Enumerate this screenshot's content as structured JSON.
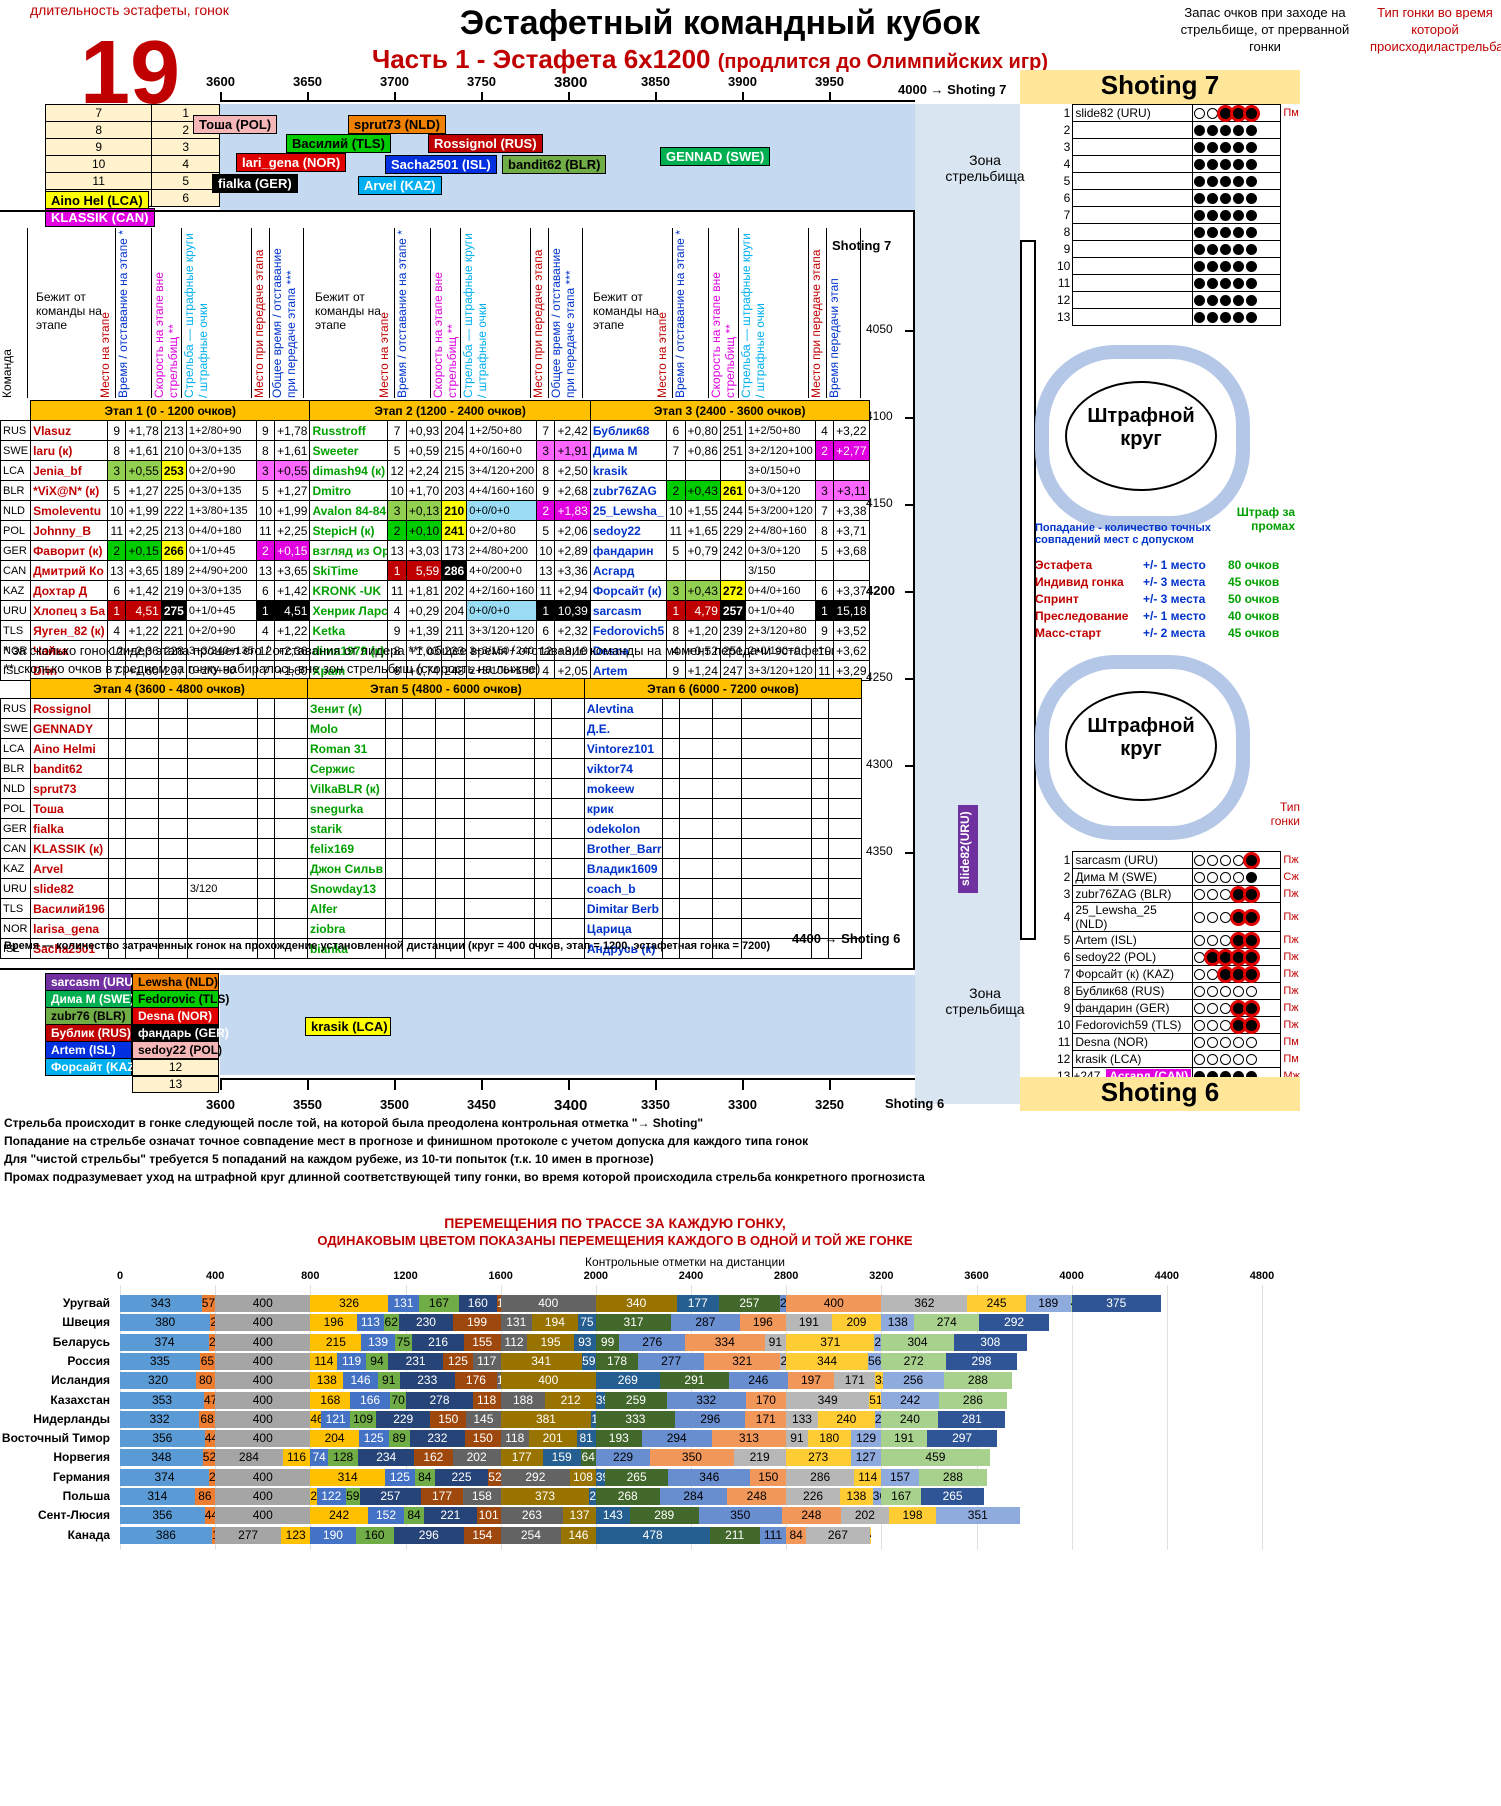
{
  "header": {
    "duration_label": "длительность эстафеты, гонок",
    "duration_value": "19",
    "title": "Эстафетный командный кубок",
    "subtitle": "Часть 1 - Эстафета 6х1200",
    "subtitle_note": "(продлится до Олимпийских игр)",
    "reserve_label": "Запас очков при заходе на стрельбище, от прерванной гонки",
    "race_type_label": "Тип гонки во время которой происходиластрельба"
  },
  "ruler_top": {
    "ticks": [
      "3600",
      "3650",
      "3700",
      "3750",
      "3800",
      "3850",
      "3900",
      "3950"
    ],
    "end": "4000 → Shoting 7"
  },
  "ruler_bottom": {
    "ticks": [
      "3600",
      "3550",
      "3500",
      "3450",
      "3400",
      "3350",
      "3300",
      "3250"
    ],
    "end": "Shoting 6"
  },
  "side_ticks": [
    "4050",
    "4100",
    "4150",
    "4200",
    "4250",
    "4300",
    "4350"
  ],
  "shoting7_label_left": "Shoting 7",
  "shoting6_label_left": "4400 → Shoting 6",
  "queue_top": [
    [
      "7",
      "1"
    ],
    [
      "8",
      "2"
    ],
    [
      "9",
      "3"
    ],
    [
      "10",
      "4"
    ],
    [
      "11",
      "5"
    ],
    [
      "",
      "6"
    ]
  ],
  "queue_top_tags": [
    {
      "name": "Тоша (POL)",
      "color": "#f4b6b6"
    },
    {
      "name": "sprut73 (NLD)",
      "color": "#f08000"
    },
    {
      "name": "Василий (TLS)",
      "color": "#00cc00"
    },
    {
      "name": "Rossignol (RUS)",
      "color": "#c00000"
    },
    {
      "name": "lari_gena (NOR)",
      "color": "#e00000"
    },
    {
      "name": "Sacha2501 (ISL)",
      "color": "#0030e0"
    },
    {
      "name": "bandit62 (BLR)",
      "color": "#70ad47"
    },
    {
      "name": "GENNAD (SWE)",
      "color": "#00b050"
    },
    {
      "name": "fialka (GER)",
      "color": "#000000"
    },
    {
      "name": "Arvel (KAZ)",
      "color": "#00b0f0"
    },
    {
      "name": "Aino Hel (LCA)",
      "color": "#ffff00"
    },
    {
      "name": "KLASSIK (CAN)",
      "color": "#e000e0"
    }
  ],
  "zone_label": "Зона стрельбища",
  "col_headers": {
    "team": "Команда",
    "runner": "Бежит от команды на этапе",
    "place": "Место на этапе",
    "time": "Время / отставание на этапе *",
    "speed": "Скорость на этапе вне стрельбищ **",
    "shooting": "Стрельба — штрафные круги / штрафные очки",
    "place_pass": "Место при передаче этапа",
    "total": "Общее время / отставание при передаче этапа ***",
    "time_pass": "Время передачи этап"
  },
  "stages_top": [
    "Этап 1  (0 - 1200 очков)",
    "Этап 2  (1200 - 2400 очков)",
    "Этап 3  (2400 - 3600 очков)"
  ],
  "teams": [
    "RUS",
    "SWE",
    "LCA",
    "BLR",
    "NLD",
    "POL",
    "GER",
    "CAN",
    "KAZ",
    "URU",
    "TLS",
    "NOR",
    "ISL"
  ],
  "stage1": [
    [
      "Vlasuz",
      "9",
      "+1,78",
      "213",
      "1+2/80+90",
      "9",
      "+1,78"
    ],
    [
      "laru (к)",
      "8",
      "+1,61",
      "210",
      "0+3/0+135",
      "8",
      "+1,61"
    ],
    [
      "Jenia_bf",
      "3",
      "+0,55",
      "253",
      "0+2/0+90",
      "3",
      "+0,55"
    ],
    [
      "*ViX@N* (к)",
      "5",
      "+1,27",
      "225",
      "0+3/0+135",
      "5",
      "+1,27"
    ],
    [
      "Smoleventu",
      "10",
      "+1,99",
      "222",
      "1+3/80+135",
      "10",
      "+1,99"
    ],
    [
      "Johnny_B",
      "11",
      "+2,25",
      "213",
      "0+4/0+180",
      "11",
      "+2,25"
    ],
    [
      "Фаворит (к)",
      "2",
      "+0,15",
      "266",
      "0+1/0+45",
      "2",
      "+0,15"
    ],
    [
      "Дмитрий Ко",
      "13",
      "+3,65",
      "189",
      "2+4/90+200",
      "13",
      "+3,65"
    ],
    [
      "Дохтар Д",
      "6",
      "+1,42",
      "219",
      "0+3/0+135",
      "6",
      "+1,42"
    ],
    [
      "Хлопец з Ба",
      "1",
      "4,51",
      "275",
      "0+1/0+45",
      "1",
      "4,51"
    ],
    [
      "Яуген_82 (к)",
      "4",
      "+1,22",
      "221",
      "0+2/0+90",
      "4",
      "+1,22"
    ],
    [
      "Чайка",
      "12",
      "+2,36",
      "228",
      "3+3/240+135",
      "12",
      "+2,36"
    ],
    [
      "Drin",
      "7",
      "+1,60",
      "207",
      "0+2/0+90",
      "7",
      "+1,60"
    ]
  ],
  "stage2": [
    [
      "Russtroff",
      "7",
      "+0,93",
      "204",
      "1+2/50+80",
      "7",
      "+2,42"
    ],
    [
      "Sweeter",
      "5",
      "+0,59",
      "215",
      "4+0/160+0",
      "3",
      "+1,91"
    ],
    [
      "dimash94 (к)",
      "12",
      "+2,24",
      "215",
      "3+4/120+200",
      "8",
      "+2,50"
    ],
    [
      "Dmitro",
      "10",
      "+1,70",
      "203",
      "4+4/160+160",
      "9",
      "+2,68"
    ],
    [
      "Avalon 84-84",
      "3",
      "+0,13",
      "210",
      "0+0/0+0",
      "2",
      "+1,83"
    ],
    [
      "StepicH (к)",
      "2",
      "+0,10",
      "241",
      "0+2/0+80",
      "5",
      "+2,06"
    ],
    [
      "взгляд из Ор",
      "13",
      "+3,03",
      "173",
      "2+4/80+200",
      "10",
      "+2,89"
    ],
    [
      "SkiTime",
      "1",
      "5,59",
      "286",
      "4+0/200+0",
      "13",
      "+3,36"
    ],
    [
      "KRONK -UK",
      "11",
      "+1,81",
      "202",
      "4+2/160+160",
      "11",
      "+2,94"
    ],
    [
      "Хенрик Ларс",
      "4",
      "+0,29",
      "204",
      "0+0/0+0",
      "1",
      "10,39"
    ],
    [
      "Ketka",
      "9",
      "+1,39",
      "211",
      "3+3/120+120",
      "6",
      "+2,32"
    ],
    [
      "dima1979 (к)",
      "8",
      "+1,03",
      "233",
      "3+3/150+240",
      "12",
      "+3,10"
    ],
    [
      "Храm",
      "6",
      "+0,74",
      "248",
      "2+3/100+150",
      "4",
      "+2,05"
    ]
  ],
  "stage3": [
    [
      "Бублик68",
      "6",
      "+0,80",
      "251",
      "1+2/50+80",
      "4",
      "+3,22"
    ],
    [
      "Дима М",
      "7",
      "+0,86",
      "251",
      "3+2/120+100",
      "2",
      "+2,77"
    ],
    [
      "krasik",
      "",
      "",
      "",
      "3+0/150+0",
      "",
      ""
    ],
    [
      "zubr76ZAG",
      "2",
      "+0,43",
      "261",
      "0+3/0+120",
      "3",
      "+3,11"
    ],
    [
      "25_Lewsha_",
      "10",
      "+1,55",
      "244",
      "5+3/200+120",
      "7",
      "+3,38"
    ],
    [
      "sedoy22",
      "11",
      "+1,65",
      "229",
      "2+4/80+160",
      "8",
      "+3,71"
    ],
    [
      "фандарин",
      "5",
      "+0,79",
      "242",
      "0+3/0+120",
      "5",
      "+3,68"
    ],
    [
      "Асгард",
      "",
      "",
      "",
      "3/150",
      "",
      ""
    ],
    [
      "Форсайт (к)",
      "3",
      "+0,43",
      "272",
      "0+4/0+160",
      "6",
      "+3,37"
    ],
    [
      "sarcasm",
      "1",
      "4,79",
      "257",
      "0+1/0+40",
      "1",
      "15,18"
    ],
    [
      "Fedorovich5",
      "8",
      "+1,20",
      "239",
      "2+3/120+80",
      "9",
      "+3,52"
    ],
    [
      "Desna",
      "4",
      "+0,52",
      "251",
      "2+0/100+0",
      "10",
      "+3,62"
    ],
    [
      "Artem",
      "9",
      "+1,24",
      "247",
      "3+3/120+120",
      "11",
      "+3,29"
    ]
  ],
  "notes": [
    "* за сколько гонок лидер этапа прошел его / отставания от лидера *** общее время / отставание команды на момент передачи эстафеты",
    "** сколько очков в среднем за гонку набиралось вне зон стрельбищ (скорость на лыжне)"
  ],
  "stages_bottom": [
    "Этап 4  (3600 - 4800 очков)",
    "Этап 5  (4800 - 6000 очков)",
    "Этап 6  (6000 - 7200 очков)"
  ],
  "stage4": [
    "Rossignol",
    "GENNADY",
    "Aino Helmi",
    "bandit62",
    "sprut73",
    "Тоша",
    "fialka",
    "KLASSIK (к)",
    "Arvel",
    "slide82",
    "Василий196",
    "larisa_gena",
    "Sacha2501"
  ],
  "stage4_extra_urusho": "3/120",
  "stage5": [
    "Зенит (к)",
    "Molo",
    "Roman 31",
    "Сержис",
    "VilkaBLR (к)",
    "snegurka",
    "starik",
    "felix169",
    "Джон Сильв",
    "Snowday13",
    "Alfer",
    "ziobra",
    "bianka"
  ],
  "stage6": [
    "Alevtina",
    "Д.Е.",
    "Vintorez101",
    "viktor74",
    "mokeew",
    "крик",
    "odekolon",
    "Brother_Barr",
    "Владик1609",
    "coach_b",
    "Dimitar Berb",
    "Царица",
    "Андрусь (к)"
  ],
  "time_note": "Время — количество затраченных гонок на прохождение установленной дистанции (круг = 400 очков, этап = 1200, эстафетная гонка = 7200)",
  "queue_bottom_tags": [
    {
      "name": "sarcasm (URU)",
      "color": "#7030a0",
      "text": "#fff"
    },
    {
      "name": "Lewsha (NLD)",
      "color": "#f08000",
      "text": "#000"
    },
    {
      "name": "Дима M (SWE)",
      "color": "#00b050",
      "text": "#fff"
    },
    {
      "name": "Fedorovic (TLS)",
      "color": "#00cc00",
      "text": "#000"
    },
    {
      "name": "zubr76 (BLR)",
      "color": "#70ad47",
      "text": "#000"
    },
    {
      "name": "Desna (NOR)",
      "color": "#e00000",
      "text": "#fff"
    },
    {
      "name": "Бублик (RUS)",
      "color": "#c00000",
      "text": "#fff"
    },
    {
      "name": "фандарь (GER)",
      "color": "#000000",
      "text": "#fff"
    },
    {
      "name": "Artem (ISL)",
      "color": "#0030e0",
      "text": "#fff"
    },
    {
      "name": "sedoy22 (POL)",
      "color": "#f4b6b6",
      "text": "#000"
    },
    {
      "name": "Форсайт (KAZ)",
      "color": "#00b0f0",
      "text": "#fff"
    }
  ],
  "queue_bottom_nums": [
    "12",
    "13"
  ],
  "krasik_tag": "krasik (LCA)",
  "slide_tag": "slide82(URU)",
  "shoting7": {
    "title": "Shoting 7",
    "rows": [
      {
        "n": "1",
        "name": "slide82 (URU)",
        "dots": "OO●●●",
        "red": [
          2,
          3,
          4
        ],
        "type": "Пм"
      },
      {
        "n": "2"
      },
      {
        "n": "3"
      },
      {
        "n": "4"
      },
      {
        "n": "5"
      },
      {
        "n": "6"
      },
      {
        "n": "7"
      },
      {
        "n": "8"
      },
      {
        "n": "9"
      },
      {
        "n": "10"
      },
      {
        "n": "11"
      },
      {
        "n": "12"
      },
      {
        "n": "13"
      }
    ]
  },
  "penalty_label": "Штрафной круг",
  "penalty_note": "Штраф за промах",
  "hit_note": "Попадание - количество точных совпадений мест с допуском",
  "race_types": [
    [
      "Эстафета",
      "+/- 1 место",
      "80 очков"
    ],
    [
      "Индивид гонка",
      "+/- 3 места",
      "45 очков"
    ],
    [
      "Спринт",
      "+/- 3 места",
      "50 очков"
    ],
    [
      "Преследование",
      "+/- 1 место",
      "40 очков"
    ],
    [
      "Масс-старт",
      "+/- 2 места",
      "45 очков"
    ]
  ],
  "type_label_mid": "Тип гонки",
  "shoting6": {
    "title": "Shoting 6",
    "rows": [
      {
        "n": "1",
        "name": "sarcasm (URU)",
        "dots": "OOOO●",
        "red": [
          4
        ],
        "type": "Пж"
      },
      {
        "n": "2",
        "name": "Дима М (SWE)",
        "dots": "OOOO●",
        "red": [],
        "type": "Сж"
      },
      {
        "n": "3",
        "name": "zubr76ZAG (BLR)",
        "dots": "OOO●●",
        "red": [
          3,
          4
        ],
        "type": "Пж"
      },
      {
        "n": "4",
        "name": "25_Lewsha_25 (NLD)",
        "dots": "OOO●●",
        "red": [
          3,
          4
        ],
        "type": "Пж"
      },
      {
        "n": "5",
        "name": "Artem (ISL)",
        "dots": "OOO●●",
        "red": [
          3,
          4
        ],
        "type": "Пж"
      },
      {
        "n": "6",
        "name": "sedoy22  (POL)",
        "dots": "O●●●●",
        "red": [
          1,
          2,
          3,
          4
        ],
        "type": "Пж"
      },
      {
        "n": "7",
        "name": "Форсайт (к) (KAZ)",
        "dots": "OO●●●",
        "red": [
          2,
          3,
          4
        ],
        "type": "Пж"
      },
      {
        "n": "8",
        "name": "Бублик68 (RUS)",
        "dots": "OOOOO",
        "red": [],
        "type": "Пж"
      },
      {
        "n": "9",
        "name": "фандарин (GER)",
        "dots": "OOO●●",
        "red": [
          3,
          4
        ],
        "type": "Пж"
      },
      {
        "n": "10",
        "name": "Fedorovich59 (TLS)",
        "dots": "OOO●●",
        "red": [
          3,
          4
        ],
        "type": "Пж"
      },
      {
        "n": "11",
        "name": "Desna (NOR)",
        "dots": "OOOOO",
        "red": [],
        "type": "Пм"
      },
      {
        "n": "12",
        "name": "krasik (LCA)",
        "dots": "OOOOO",
        "red": [],
        "type": "Пм"
      },
      {
        "n": "13",
        "name": "+247",
        "extra": "Асгард (CAN)",
        "dots": "●●●●●",
        "red": [],
        "type": "Мж"
      }
    ]
  },
  "rules": [
    "Стрельба происходит в гонке следующей после той, на которой была преодолена контрольная отметка \"→ Shoting\"",
    "Попадание на стрельбе означат точное совпадение мест в прогнозе и финишном протоколе с учетом допуска для каждого типа гонок",
    "Для \"чистой стрельбы\" требуется 5 попаданий на каждом рубеже, из 10-ти попыток (т.к. 10 имен в прогнозе)",
    "Промах подразумевает уход на штрафной круг длинной соответствующей типу гонки, во время которой происходила стрельба конкретного прогнозиста"
  ],
  "chart_data": {
    "type": "bar",
    "stacked": true,
    "orientation": "horizontal",
    "title": "ПЕРЕМЕЩЕНИЯ ПО ТРАССЕ ЗА КАЖДУЮ ГОНКУ,",
    "subtitle": "ОДИНАКОВЫМ ЦВЕТОМ ПОКАЗАНЫ ПЕРЕМЕЩЕНИЯ КАЖДОГО В ОДНОЙ И ТОЙ ЖЕ ГОНКЕ",
    "xlabel": "Контрольные отметки на дистанции",
    "xlim": [
      0,
      4800
    ],
    "xticks": [
      "0",
      "400",
      "800",
      "1200",
      "1600",
      "2000",
      "2400",
      "2800",
      "3200",
      "3600",
      "4000",
      "4400",
      "4800"
    ],
    "palette": [
      "#5b9bd5",
      "#ed7d31",
      "#a5a5a5",
      "#ffc000",
      "#4472c4",
      "#70ad47",
      "#264478",
      "#9e480e",
      "#636363",
      "#997300",
      "#255e91",
      "#43682b",
      "#698ed0",
      "#f1975a",
      "#b7b7b7",
      "#ffcd33",
      "#8faadc",
      "#a9d18e",
      "#2f5597",
      "#c55a11"
    ],
    "categories": [
      "Уругвай",
      "Швеция",
      "Беларусь",
      "Россия",
      "Исландия",
      "Казахстан",
      "Нидерланды",
      "Восточный Тимор",
      "Норвегия",
      "Германия",
      "Польша",
      "Сент-Люсия",
      "Канада"
    ],
    "rows": [
      [
        343,
        57,
        400,
        326,
        131,
        167,
        160,
        16,
        400,
        340,
        177,
        257,
        26,
        400,
        362,
        245,
        189,
        4,
        375
      ],
      [
        380,
        20,
        400,
        196,
        113,
        62,
        230,
        199,
        131,
        194,
        75,
        317,
        287,
        196,
        191,
        209,
        138,
        274,
        292
      ],
      [
        374,
        26,
        400,
        215,
        139,
        75,
        216,
        155,
        112,
        195,
        93,
        99,
        276,
        334,
        91,
        371,
        29,
        304,
        308
      ],
      [
        335,
        65,
        400,
        114,
        119,
        94,
        231,
        125,
        117,
        341,
        59,
        178,
        277,
        321,
        24,
        344,
        56,
        272,
        298
      ],
      [
        320,
        80,
        400,
        138,
        146,
        91,
        233,
        176,
        16,
        400,
        269,
        291,
        246,
        197,
        171,
        32,
        256,
        288
      ],
      [
        353,
        47,
        400,
        168,
        166,
        70,
        278,
        118,
        188,
        212,
        39,
        259,
        332,
        170,
        349,
        51,
        242,
        286
      ],
      [
        332,
        68,
        400,
        46,
        121,
        109,
        229,
        150,
        145,
        381,
        19,
        333,
        296,
        171,
        133,
        240,
        27,
        240,
        281
      ],
      [
        356,
        44,
        400,
        204,
        125,
        89,
        232,
        150,
        118,
        201,
        81,
        193,
        294,
        313,
        91,
        180,
        129,
        191,
        297
      ],
      [
        348,
        52,
        284,
        116,
        74,
        128,
        234,
        162,
        202,
        177,
        159,
        64,
        229,
        350,
        219,
        273,
        127,
        459
      ],
      [
        374,
        26,
        400,
        314,
        125,
        84,
        225,
        52,
        292,
        108,
        39,
        265,
        346,
        150,
        286,
        114,
        157,
        288
      ],
      [
        314,
        86,
        400,
        27,
        122,
        59,
        257,
        177,
        158,
        373,
        27,
        268,
        284,
        248,
        226,
        138,
        36,
        167,
        265
      ],
      [
        356,
        44,
        400,
        242,
        152,
        84,
        221,
        101,
        263,
        137,
        143,
        289,
        350,
        248,
        202,
        198,
        351
      ],
      [
        386,
        14,
        277,
        123,
        190,
        160,
        296,
        154,
        254,
        146,
        478,
        211,
        111,
        84,
        267,
        4
      ]
    ]
  }
}
